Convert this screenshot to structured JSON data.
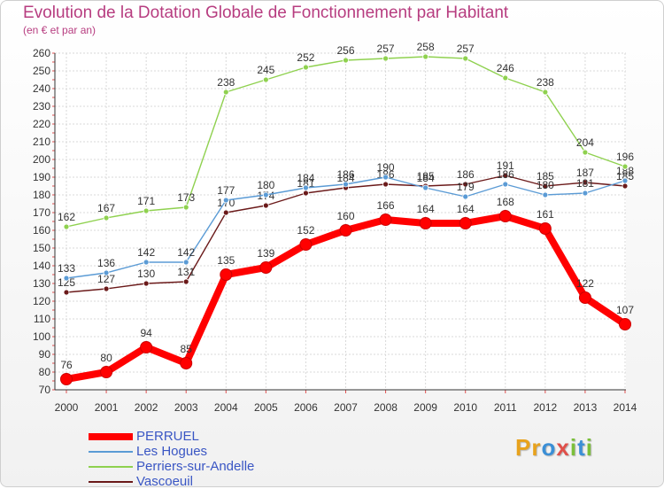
{
  "title": "Evolution de la Dotation Globale de Fonctionnement par Habitant",
  "subtitle": "(en € et par an)",
  "logo": {
    "letters": [
      "P",
      "r",
      "o",
      "x",
      "i",
      "t",
      "i"
    ],
    "colors": [
      "#e8a21c",
      "#e8a21c",
      "#3b8fd6",
      "#e0504a",
      "#7bbf3a",
      "#3b8fd6",
      "#7bbf3a"
    ]
  },
  "chart_data": {
    "type": "line",
    "title": "Evolution de la Dotation Globale de Fonctionnement par Habitant",
    "ylabel": "(en € et par an)",
    "xlabel": "",
    "ylim": [
      70,
      260
    ],
    "yticks": [
      70,
      80,
      90,
      100,
      110,
      120,
      130,
      140,
      150,
      160,
      170,
      180,
      190,
      200,
      210,
      220,
      230,
      240,
      250,
      260
    ],
    "grid": true,
    "legend_position": "bottom-left",
    "categories": [
      "2000",
      "2001",
      "2002",
      "2003",
      "2004",
      "2005",
      "2006",
      "2007",
      "2008",
      "2009",
      "2010",
      "2011",
      "2012",
      "2013",
      "2014"
    ],
    "series": [
      {
        "name": "Vascoeuil",
        "color": "#6b1a1a",
        "values": [
          125,
          127,
          130,
          131,
          170,
          174,
          181,
          184,
          186,
          185,
          186,
          191,
          185,
          187,
          185
        ]
      },
      {
        "name": "Les Hogues",
        "color": "#5b9bd5",
        "values": [
          133,
          136,
          142,
          142,
          177,
          180,
          184,
          186,
          190,
          184,
          179,
          186,
          180,
          181,
          188
        ]
      },
      {
        "name": "Perriers-sur-Andelle",
        "color": "#8fd14f",
        "values": [
          162,
          167,
          171,
          173,
          238,
          245,
          252,
          256,
          257,
          258,
          257,
          246,
          238,
          204,
          196
        ]
      },
      {
        "name": "PERRUEL",
        "color": "#ff0000",
        "values": [
          76,
          80,
          94,
          85,
          135,
          139,
          152,
          160,
          166,
          164,
          164,
          168,
          161,
          122,
          107
        ]
      }
    ],
    "legend": [
      "PERRUEL",
      "Les Hogues",
      "Perriers-sur-Andelle",
      "Vascoeuil"
    ]
  }
}
